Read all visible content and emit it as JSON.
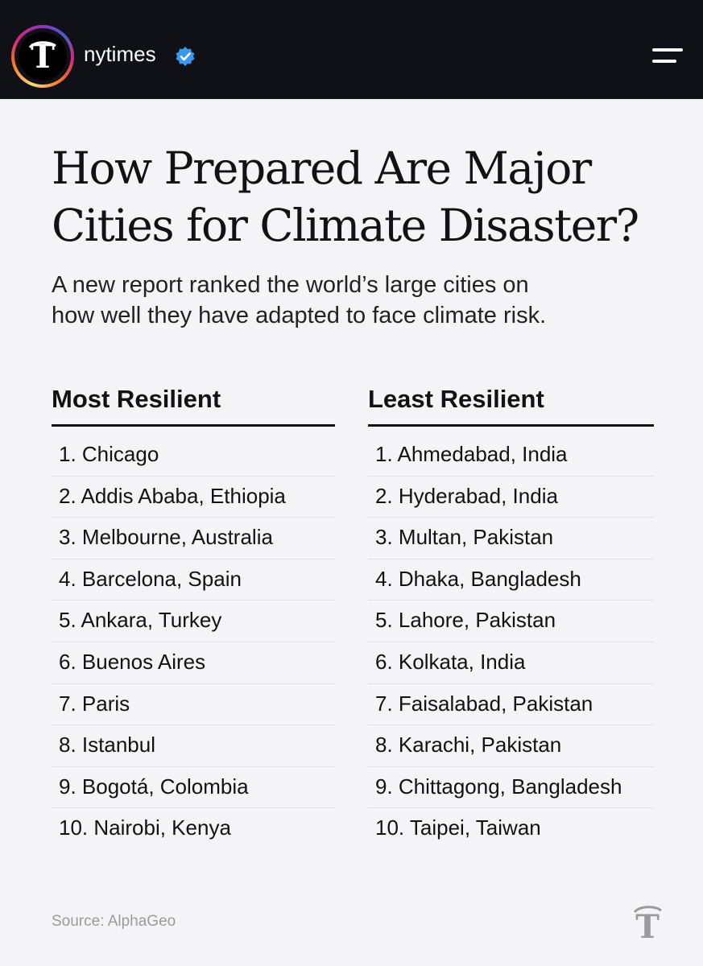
{
  "header": {
    "username": "nytimes",
    "verified_icon": "verified-badge-icon",
    "menu_icon": "menu-icon",
    "brand_color": "#0f1116",
    "verified_color": "#3897f0"
  },
  "post": {
    "title_line1": "How Prepared Are Major",
    "title_line2": "Cities for Climate Disaster?",
    "subtitle_line1": "A new report ranked the world’s large cities on",
    "subtitle_line2": "how well they have adapted to face climate risk.",
    "most_resilient": {
      "heading": "Most Resilient",
      "items": [
        "1. Chicago",
        "2. Addis Ababa, Ethiopia",
        "3. Melbourne, Australia",
        "4. Barcelona, Spain",
        "5. Ankara, Turkey",
        "6. Buenos Aires",
        "7. Paris",
        "8. Istanbul",
        "9. Bogotá, Colombia",
        "10. Nairobi, Kenya"
      ]
    },
    "least_resilient": {
      "heading": "Least Resilient",
      "items": [
        "1. Ahmedabad, India",
        "2. Hyderabad, India",
        "3. Multan, Pakistan",
        "4. Dhaka, Bangladesh",
        "5. Lahore, Pakistan",
        "6. Kolkata, India",
        "7. Faisalabad, Pakistan",
        "8. Karachi, Pakistan",
        "9. Chittagong, Bangladesh",
        "10. Taipei, Taiwan"
      ]
    },
    "source": "Source: AlphaGeo",
    "logo_icon": "nyt-t-logo-icon"
  }
}
